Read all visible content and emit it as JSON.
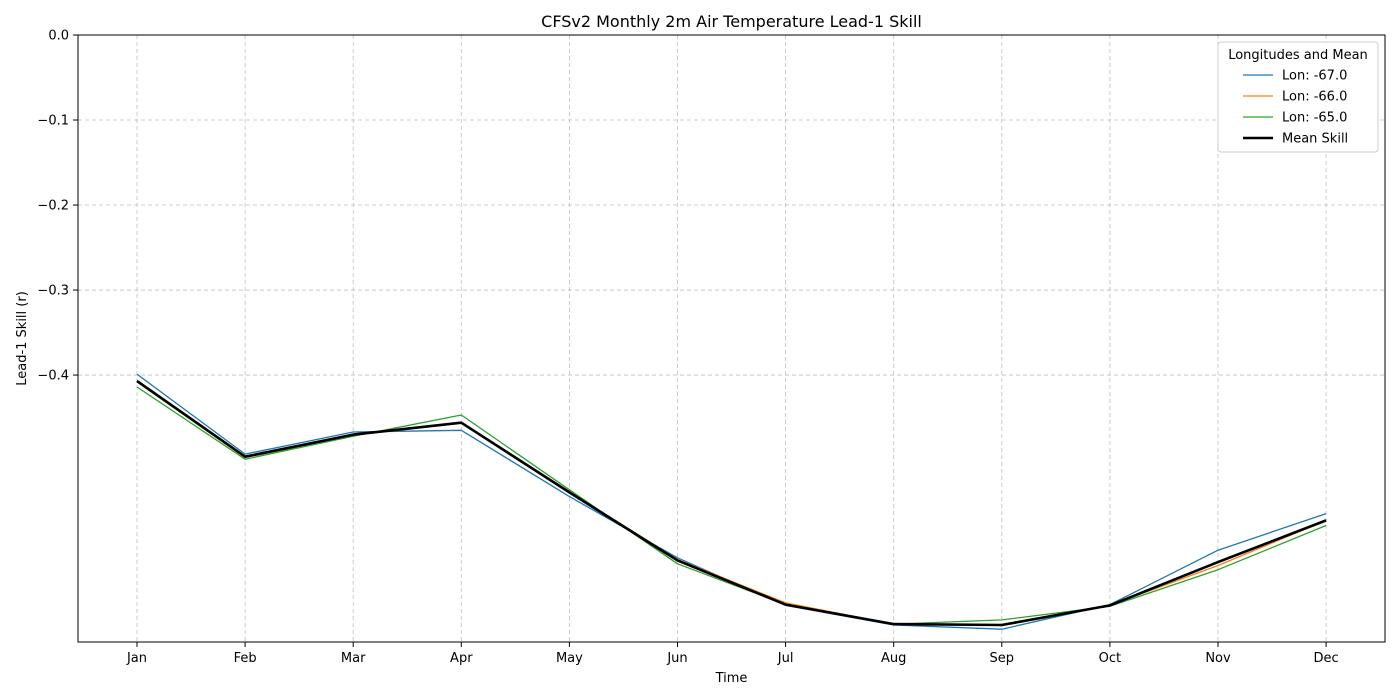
{
  "chart_data": {
    "type": "line",
    "title": "CFSv2 Monthly 2m Air Temperature Lead-1 Skill",
    "xlabel": "Time",
    "ylabel": "Lead-1 Skill (r)",
    "categories": [
      "Jan",
      "Feb",
      "Mar",
      "Apr",
      "May",
      "Jun",
      "Jul",
      "Aug",
      "Sep",
      "Oct",
      "Nov",
      "Dec"
    ],
    "y_ticks": [
      0.0,
      -0.1,
      -0.2,
      -0.3,
      -0.4
    ],
    "y_tick_labels": [
      "0.0",
      "−0.1",
      "−0.2",
      "−0.3",
      "−0.4"
    ],
    "ylim": [
      -0.714,
      0.0
    ],
    "grid": true,
    "legend": {
      "title": "Longitudes and Mean",
      "placement": "top-right"
    },
    "series": [
      {
        "name": "Lon: -67.0",
        "color": "#1f77b4",
        "values": [
          -0.399,
          -0.493,
          -0.467,
          -0.465,
          -0.543,
          -0.615,
          -0.671,
          -0.694,
          -0.699,
          -0.67,
          -0.606,
          -0.563
        ]
      },
      {
        "name": "Lon: -66.0",
        "color": "#ff7f0e",
        "values": [
          -0.408,
          -0.497,
          -0.471,
          -0.456,
          -0.537,
          -0.617,
          -0.668,
          -0.693,
          -0.694,
          -0.671,
          -0.624,
          -0.571
        ]
      },
      {
        "name": "Lon: -65.0",
        "color": "#2ca02c",
        "values": [
          -0.414,
          -0.499,
          -0.472,
          -0.447,
          -0.535,
          -0.622,
          -0.67,
          -0.693,
          -0.688,
          -0.672,
          -0.629,
          -0.577
        ]
      },
      {
        "name": "Mean Skill",
        "color": "#000000",
        "values": [
          -0.407,
          -0.496,
          -0.47,
          -0.456,
          -0.538,
          -0.618,
          -0.67,
          -0.693,
          -0.694,
          -0.671,
          -0.62,
          -0.571
        ]
      }
    ]
  }
}
